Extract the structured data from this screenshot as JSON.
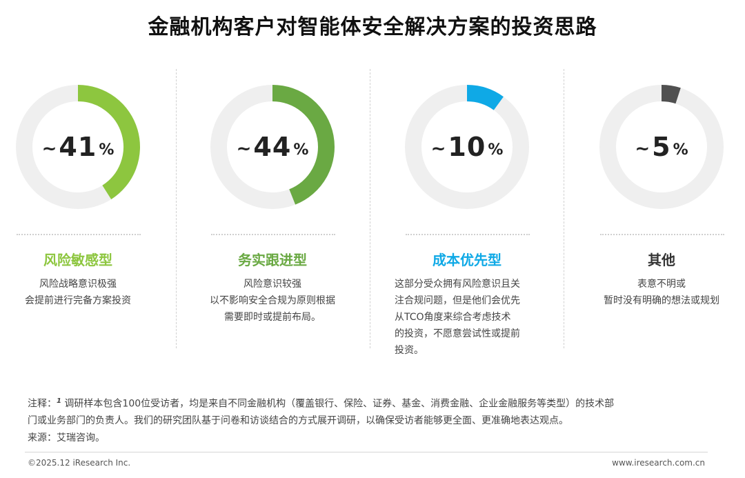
{
  "title": "金融机构客户对智能体安全解决方案的投资思路",
  "chart_data": {
    "type": "pie",
    "series": [
      {
        "name": "风险敏感型",
        "value": 41,
        "color": "#8dc63f"
      },
      {
        "name": "务实跟进型",
        "value": 44,
        "color": "#6aa943"
      },
      {
        "name": "成本优先型",
        "value": 10,
        "color": "#0fa9e6"
      },
      {
        "name": "其他",
        "value": 5,
        "color": "#505050"
      }
    ],
    "track_color": "#efefef"
  },
  "panels": [
    {
      "tilde": "~",
      "value": "41",
      "unit": "%",
      "category": "风险敏感型",
      "lines": [
        "风险战略意识极强",
        "会提前进行完备方案投资"
      ]
    },
    {
      "tilde": "~",
      "value": "44",
      "unit": "%",
      "category": "务实跟进型",
      "lines": [
        "风险意识较强",
        "以不影响安全合规为原则根据",
        "需要即时或提前布局。"
      ]
    },
    {
      "tilde": "~",
      "value": "10",
      "unit": "%",
      "category": "成本优先型",
      "lines": [
        "这部分受众拥有风险意识且关",
        "注合规问题，但是他们会优先",
        "从TCO角度来综合考虑技术",
        "的投资，不愿意尝试性或提前",
        "投资。"
      ]
    },
    {
      "tilde": "~",
      "value": "5",
      "unit": "%",
      "category": "其他",
      "lines": [
        "表意不明或",
        "暂时没有明确的想法或规划"
      ]
    }
  ],
  "note": {
    "prefix": "注释：",
    "sup": "1",
    "line1": "调研样本包含100位受访者，均是来自不同金融机构（覆盖银行、保险、证券、基金、消费金融、企业金融服务等类型）的技术部",
    "line2": "门或业务部门的负责人。我们的研究团队基于问卷和访谈结合的方式展开调研，以确保受访者能够更全面、更准确地表达观点。"
  },
  "source": "来源：艾瑞咨询。",
  "copyright": "©2025.12 iResearch Inc.",
  "website": "www.iresearch.com.cn"
}
